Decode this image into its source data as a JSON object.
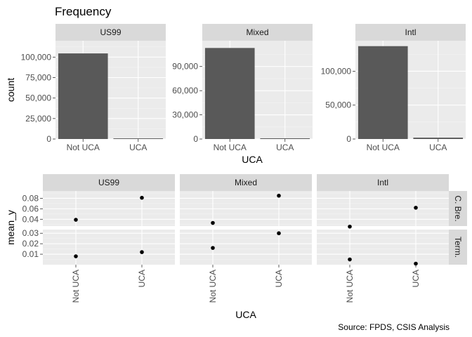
{
  "title": "Frequency",
  "caption": "Source: FPDS, CSIS Analysis",
  "chart_data": [
    {
      "type": "bar",
      "facet_by": "panel",
      "categories": [
        "Not UCA",
        "UCA"
      ],
      "xlabel": "UCA",
      "ylabel": "count",
      "panels": [
        {
          "name": "US99",
          "values": [
            104500,
            800
          ],
          "ylim": [
            0,
            120000
          ],
          "ticks": [
            0,
            25000,
            50000,
            75000,
            100000
          ],
          "tick_labels": [
            "0",
            "25,000",
            "50,000",
            "75,000",
            "100,000"
          ]
        },
        {
          "name": "Mixed",
          "values": [
            113000,
            900
          ],
          "ylim": [
            0,
            122000
          ],
          "ticks": [
            0,
            30000,
            60000,
            90000
          ],
          "tick_labels": [
            "0",
            "30,000",
            "60,000",
            "90,000"
          ]
        },
        {
          "name": "Intl",
          "values": [
            137000,
            2000
          ],
          "ylim": [
            0,
            145000
          ],
          "ticks": [
            0,
            50000,
            100000
          ],
          "tick_labels": [
            "0",
            "50,000",
            "100,000"
          ]
        }
      ],
      "bar_color": "#595959",
      "grid": true
    },
    {
      "type": "scatter",
      "facet_cols": [
        "US99",
        "Mixed",
        "Intl"
      ],
      "facet_rows": [
        "C. Bre.",
        "Term."
      ],
      "categories": [
        "Not UCA",
        "UCA"
      ],
      "xlabel": "UCA",
      "ylabel": "mean_y",
      "rows": [
        {
          "name": "C. Bre.",
          "ylim": [
            0.027,
            0.094
          ],
          "ticks": [
            0.04,
            0.06,
            0.08
          ],
          "tick_labels": [
            "0.04",
            "0.06",
            "0.08"
          ],
          "values": [
            [
              0.039,
              0.081
            ],
            [
              0.033,
              0.085
            ],
            [
              0.026,
              0.062
            ]
          ]
        },
        {
          "name": "Term.",
          "ylim": [
            0.0,
            0.0335
          ],
          "ticks": [
            0.01,
            0.02,
            0.03
          ],
          "tick_labels": [
            "0.01",
            "0.02",
            "0.03"
          ],
          "values": [
            [
              0.008,
              0.012
            ],
            [
              0.016,
              0.03
            ],
            [
              0.005,
              0.001
            ]
          ]
        }
      ],
      "point_color": "#000000",
      "grid": true
    }
  ]
}
